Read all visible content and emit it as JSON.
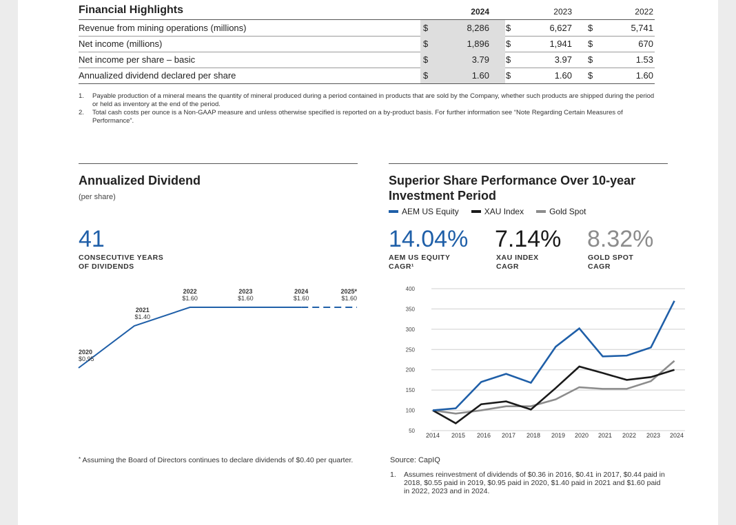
{
  "financial_highlights": {
    "title": "Financial Highlights",
    "years": [
      "2024",
      "2023",
      "2022"
    ],
    "rows": [
      {
        "label": "Revenue from mining operations (millions)",
        "cur": [
          "$",
          "$",
          "$"
        ],
        "values": [
          "8,286",
          "6,627",
          "5,741"
        ]
      },
      {
        "label": "Net income (millions)",
        "cur": [
          "$",
          "$",
          "$"
        ],
        "values": [
          "1,896",
          "1,941",
          "670"
        ]
      },
      {
        "label": "Net income per share – basic",
        "cur": [
          "$",
          "$",
          "$"
        ],
        "values": [
          "3.79",
          "3.97",
          "1.53"
        ]
      },
      {
        "label": "Annualized dividend declared per share",
        "cur": [
          "$",
          "$",
          "$"
        ],
        "values": [
          "1.60",
          "1.60",
          "1.60"
        ]
      }
    ],
    "notes": [
      {
        "num": "1.",
        "text": "Payable production of a mineral means the quantity of mineral produced during a period contained in products that are sold by the Company, whether such products are shipped during the period or held as inventory at the end of the period."
      },
      {
        "num": "2.",
        "text": "Total cash costs per ounce is a Non-GAAP measure and unless otherwise specified is reported on a by-product basis. For further information see “Note Regarding Certain Measures of Performance”."
      }
    ]
  },
  "dividend": {
    "title": "Annualized Dividend",
    "subtitle": "(per share)",
    "big_number": "41",
    "big_caption": [
      "CONSECUTIVE YEARS",
      "OF DIVIDENDS"
    ],
    "footnote_mark": "*",
    "footnote": "Assuming the Board of Directors continues to declare dividends of $0.40 per quarter."
  },
  "performance": {
    "title_line1": "Superior Share Performance Over 10-year",
    "title_line2": "Investment Period",
    "stats": [
      {
        "value": "14.04%",
        "caption1": "AEM US EQUITY",
        "caption2": "CAGR¹",
        "color": "#1f5fa8"
      },
      {
        "value": "7.14%",
        "caption1": "XAU INDEX",
        "caption2": "CAGR",
        "color": "#1a1a1a"
      },
      {
        "value": "8.32%",
        "caption1": "GOLD SPOT",
        "caption2": "CAGR",
        "color": "#8c8c8c"
      }
    ],
    "source": "Source: CapIQ",
    "note_num": "1.",
    "note": "Assumes reinvestment of dividends of $0.36 in 2016, $0.41 in 2017, $0.44 paid in 2018, $0.55 paid in 2019, $0.95 paid in 2020, $1.40 paid in 2021 and $1.60 paid in 2022, 2023 and in 2024."
  },
  "chart_data": [
    {
      "type": "line",
      "x": [
        "2020",
        "2021",
        "2022",
        "2023",
        "2024",
        "2025*"
      ],
      "point_labels": [
        "$0.95",
        "$1.40",
        "$1.60",
        "$1.60",
        "$1.60",
        "$1.60"
      ],
      "series": [
        {
          "values": [
            0.95,
            1.4,
            1.6,
            1.6,
            1.6,
            1.6
          ],
          "projected_from_index": 4
        }
      ],
      "color": "#1f5fa8",
      "grid": false
    },
    {
      "type": "line",
      "x": [
        "2014",
        "2015",
        "2016",
        "2017",
        "2018",
        "2019",
        "2020",
        "2021",
        "2022",
        "2023",
        "2024"
      ],
      "yticks": [
        50,
        100,
        150,
        200,
        250,
        300,
        350,
        400
      ],
      "ylim": [
        50,
        400
      ],
      "legend_placement": "top",
      "grid": true,
      "series": [
        {
          "name": "AEM US Equity",
          "color": "#1f5fa8",
          "points": [
            [
              0,
              100
            ],
            [
              0.9,
              105
            ],
            [
              1.9,
              170
            ],
            [
              2.9,
              190
            ],
            [
              3.9,
              168
            ],
            [
              4.9,
              257
            ],
            [
              5.9,
              302
            ],
            [
              6.9,
              233
            ],
            [
              7.9,
              235
            ],
            [
              8.9,
              255
            ],
            [
              9.9,
              370
            ]
          ]
        },
        {
          "name": "XAU Index",
          "color": "#1a1a1a",
          "points": [
            [
              0,
              100
            ],
            [
              0.9,
              68
            ],
            [
              1.9,
              115
            ],
            [
              2.9,
              122
            ],
            [
              3.9,
              102
            ],
            [
              4.9,
              155
            ],
            [
              5.9,
              208
            ],
            [
              6.9,
              192
            ],
            [
              7.9,
              175
            ],
            [
              8.9,
              182
            ],
            [
              9.9,
              200
            ]
          ]
        },
        {
          "name": "Gold Spot",
          "color": "#8c8c8c",
          "points": [
            [
              0,
              100
            ],
            [
              0.9,
              92
            ],
            [
              1.9,
              100
            ],
            [
              2.9,
              110
            ],
            [
              3.9,
              110
            ],
            [
              4.9,
              127
            ],
            [
              5.9,
              157
            ],
            [
              6.9,
              153
            ],
            [
              7.9,
              153
            ],
            [
              8.9,
              172
            ],
            [
              9.9,
              222
            ]
          ]
        }
      ]
    }
  ]
}
